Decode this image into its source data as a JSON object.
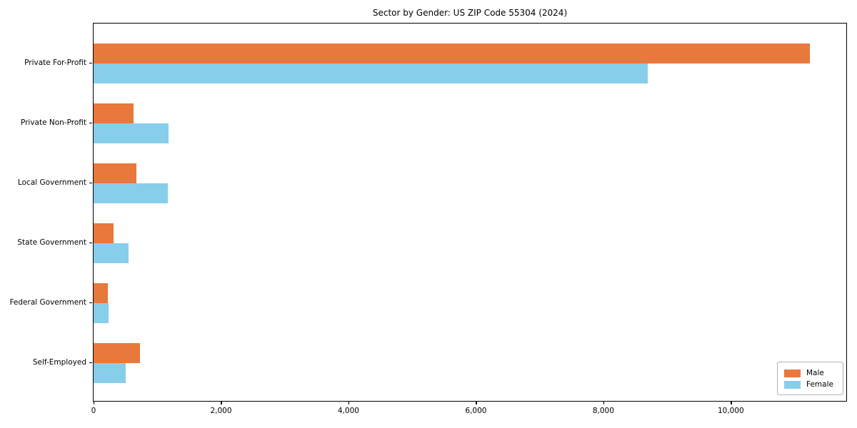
{
  "chart_data": {
    "type": "bar",
    "orientation": "horizontal",
    "title": "Sector by Gender: US ZIP Code 55304 (2024)",
    "categories": [
      "Private For-Profit",
      "Private Non-Profit",
      "Local Government",
      "State Government",
      "Federal Government",
      "Self-Employed"
    ],
    "series": [
      {
        "name": "Male",
        "color": "#e8783c",
        "values": [
          11240,
          630,
          675,
          310,
          220,
          725
        ]
      },
      {
        "name": "Female",
        "color": "#87ceeb",
        "values": [
          8690,
          1175,
          1170,
          545,
          235,
          500
        ]
      }
    ],
    "xlabel": "",
    "ylabel": "",
    "xlim": [
      0,
      11800
    ],
    "xticks": [
      0,
      2000,
      4000,
      6000,
      8000,
      10000
    ],
    "xtick_labels": [
      "0",
      "2,000",
      "4,000",
      "6,000",
      "8,000",
      "10,000"
    ],
    "grid": false,
    "legend": {
      "position": "lower right",
      "entries": [
        "Male",
        "Female"
      ]
    },
    "colors": {
      "male": "#e8783c",
      "female": "#87ceeb",
      "axis": "#000000",
      "background": "#ffffff",
      "legend_border": "#b3b3b3"
    }
  }
}
